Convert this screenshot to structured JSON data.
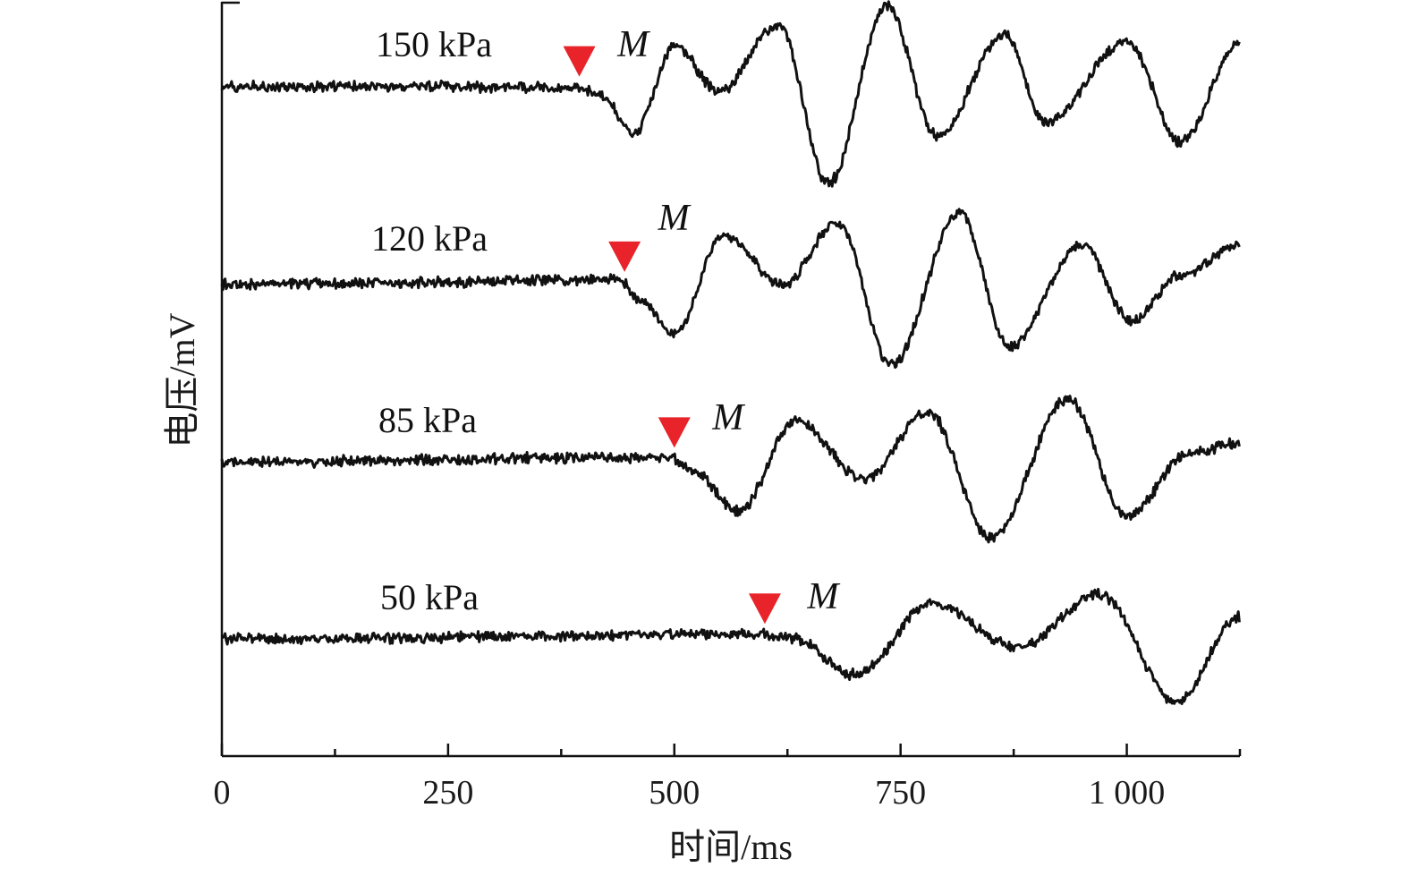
{
  "chart_data": {
    "type": "line",
    "title": "",
    "xlabel": "时间/ms",
    "ylabel": "电压/mV",
    "xlim": [
      0,
      1125
    ],
    "x_ticks": [
      0,
      250,
      500,
      750,
      1000
    ],
    "x_tick_labels": [
      "0",
      "250",
      "500",
      "750",
      "1 000"
    ],
    "x_minor_ticks": [
      125,
      375,
      625,
      875
    ],
    "y_ticks_shown": false,
    "grid": false,
    "legend": "none",
    "colors": {
      "trace": "#111111",
      "marker": "#e8232a"
    },
    "series": [
      {
        "name": "150 kPa",
        "arrival_marker": {
          "label": "M",
          "time_ms": 395
        },
        "points": [
          [
            0,
            0
          ],
          [
            390,
            0
          ],
          [
            420,
            -10
          ],
          [
            455,
            -52
          ],
          [
            500,
            45
          ],
          [
            550,
            -5
          ],
          [
            615,
            70
          ],
          [
            670,
            -108
          ],
          [
            735,
            90
          ],
          [
            790,
            -55
          ],
          [
            865,
            58
          ],
          [
            910,
            -40
          ],
          [
            1000,
            50
          ],
          [
            1060,
            -62
          ],
          [
            1125,
            50
          ]
        ]
      },
      {
        "name": "120 kPa",
        "arrival_marker": {
          "label": "M",
          "time_ms": 445
        },
        "points": [
          [
            0,
            0
          ],
          [
            440,
            5
          ],
          [
            460,
            -15
          ],
          [
            500,
            -55
          ],
          [
            555,
            55
          ],
          [
            620,
            0
          ],
          [
            680,
            68
          ],
          [
            740,
            -90
          ],
          [
            815,
            80
          ],
          [
            870,
            -70
          ],
          [
            950,
            45
          ],
          [
            1005,
            -40
          ],
          [
            1060,
            10
          ],
          [
            1125,
            45
          ]
        ]
      },
      {
        "name": "85 kPa",
        "arrival_marker": {
          "label": "M",
          "time_ms": 500
        },
        "points": [
          [
            0,
            0
          ],
          [
            495,
            5
          ],
          [
            520,
            -10
          ],
          [
            570,
            -55
          ],
          [
            635,
            45
          ],
          [
            710,
            -20
          ],
          [
            780,
            55
          ],
          [
            850,
            -85
          ],
          [
            935,
            70
          ],
          [
            1000,
            -60
          ],
          [
            1070,
            10
          ],
          [
            1125,
            20
          ]
        ]
      },
      {
        "name": "50 kPa",
        "arrival_marker": {
          "label": "M",
          "time_ms": 600
        },
        "points": [
          [
            0,
            0
          ],
          [
            595,
            5
          ],
          [
            630,
            0
          ],
          [
            700,
            -40
          ],
          [
            785,
            40
          ],
          [
            880,
            -10
          ],
          [
            970,
            50
          ],
          [
            1055,
            -70
          ],
          [
            1125,
            25
          ]
        ]
      }
    ]
  }
}
